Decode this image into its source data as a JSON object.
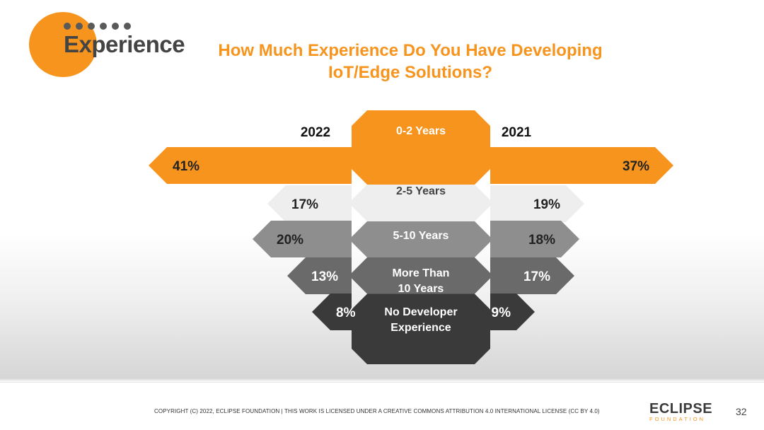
{
  "header": {
    "section_title": "Experience",
    "title_line1": "How Much Experience Do You Have Developing",
    "title_line2": "IoT/Edge Solutions?"
  },
  "chart_data": {
    "type": "bar",
    "title": "How Much Experience Do You Have Developing IoT/Edge Solutions?",
    "categories": [
      "0-2 Years",
      "2-5 Years",
      "5-10 Years",
      "More Than 10 Years",
      "No Developer Experience"
    ],
    "series": [
      {
        "name": "2022",
        "values": [
          41,
          17,
          20,
          13,
          8
        ],
        "labels": [
          "41%",
          "17%",
          "20%",
          "13%",
          "8%"
        ]
      },
      {
        "name": "2021",
        "values": [
          37,
          19,
          18,
          17,
          9
        ],
        "labels": [
          "37%",
          "19%",
          "18%",
          "17%",
          "9%"
        ]
      }
    ],
    "category_labels": [
      [
        "0-2 Years"
      ],
      [
        "2-5 Years"
      ],
      [
        "5-10 Years"
      ],
      [
        "More Than",
        "10 Years"
      ],
      [
        "No Developer",
        "Experience"
      ]
    ],
    "colors": [
      "#f7941d",
      "#eeeeee",
      "#8e8e8e",
      "#6a6a6a",
      "#3a3a3a"
    ],
    "label_colors": [
      "#222222",
      "#222222",
      "#222222",
      "#ffffff",
      "#ffffff"
    ]
  },
  "footer": {
    "copyright": "COPYRIGHT (C) 2022, ECLIPSE FOUNDATION | THIS WORK IS LICENSED UNDER A CREATIVE COMMONS ATTRIBUTION 4.0 INTERNATIONAL LICENSE (CC BY 4.0)",
    "brand": "ECLIPSE",
    "brand_sub": "FOUNDATION",
    "page_number": "32"
  }
}
